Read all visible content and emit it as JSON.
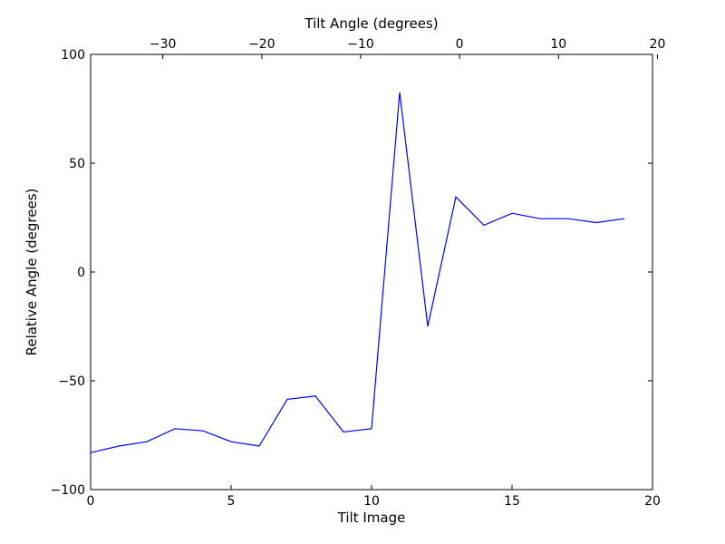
{
  "chart_data": {
    "type": "line",
    "xlabel": "Tilt Image",
    "ylabel": "Relative Angle (degrees)",
    "top_xlabel": "Tilt Angle (degrees)",
    "xlim": [
      0,
      20
    ],
    "ylim": [
      -100,
      100
    ],
    "top_xlim": [
      -37.3,
      19.5
    ],
    "xticks": [
      0,
      5,
      10,
      15,
      20
    ],
    "yticks": [
      -100,
      -50,
      0,
      50,
      100
    ],
    "top_xticks": [
      -30,
      -20,
      -10,
      0,
      10,
      20
    ],
    "grid": false,
    "series": [
      {
        "color": "#0000ff",
        "x": [
          0,
          1,
          2,
          3,
          4,
          5,
          6,
          7,
          8,
          9,
          10,
          11,
          12,
          13,
          14,
          15,
          16,
          17,
          18,
          19
        ],
        "y": [
          -83,
          -80,
          -78,
          -72,
          -73,
          -78,
          -80,
          -58.5,
          -57,
          -73.5,
          -72,
          82.5,
          -25,
          34.5,
          21.5,
          27,
          24.5,
          24.5,
          22.7,
          24.5
        ]
      }
    ]
  }
}
